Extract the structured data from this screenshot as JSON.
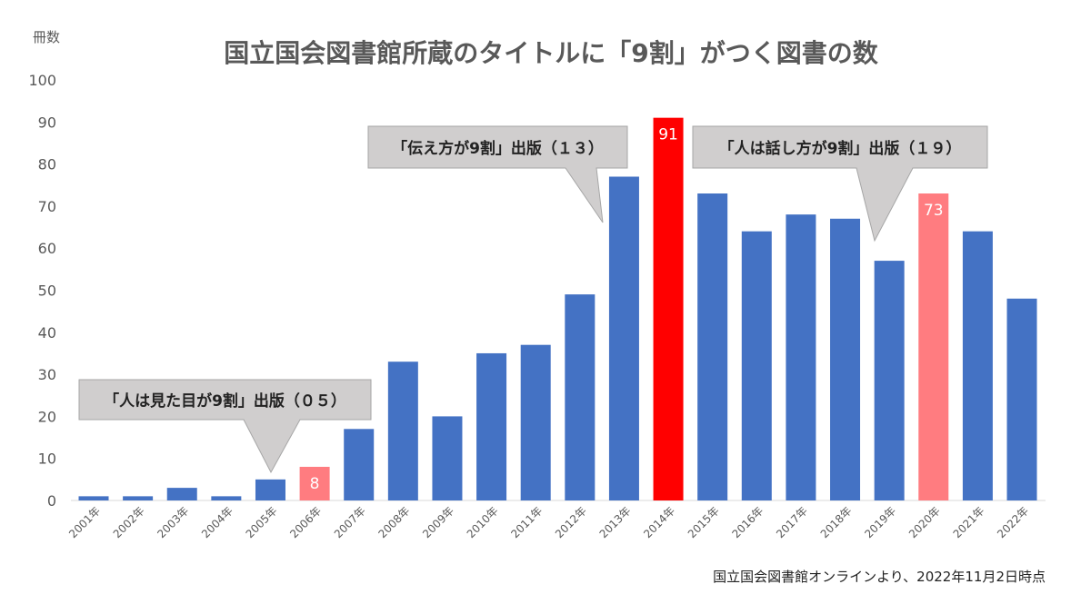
{
  "chart_data": {
    "type": "bar",
    "title": "国立国会図書館所蔵のタイトルに「9割」がつく図書の数",
    "ylabel": "冊数",
    "xlabel": "",
    "ylim": [
      0,
      100
    ],
    "yticks": [
      0,
      10,
      20,
      30,
      40,
      50,
      60,
      70,
      80,
      90,
      100
    ],
    "grid": false,
    "categories": [
      "2001年",
      "2002年",
      "2003年",
      "2004年",
      "2005年",
      "2006年",
      "2007年",
      "2008年",
      "2009年",
      "2010年",
      "2011年",
      "2012年",
      "2013年",
      "2014年",
      "2015年",
      "2016年",
      "2017年",
      "2018年",
      "2019年",
      "2020年",
      "2021年",
      "2022年"
    ],
    "values": [
      1,
      1,
      3,
      1,
      5,
      8,
      17,
      33,
      20,
      35,
      37,
      49,
      77,
      91,
      73,
      64,
      68,
      67,
      57,
      73,
      64,
      48
    ],
    "data_labels": {
      "2006年": "8",
      "2014年": "91",
      "2020年": "73"
    },
    "highlight_colors": {
      "2006年": "#ff7c80",
      "2014年": "#ff0000",
      "2020年": "#ff7c80"
    },
    "bar_color": "#4472c4",
    "annotations": [
      {
        "text": "「人は見た目が9割」出版（０５）",
        "target": "2005年"
      },
      {
        "text": "「伝え方が9割」出版（１３）",
        "target": "2013年"
      },
      {
        "text": "「人は話し方が9割」出版（１９）",
        "target": "2019年"
      }
    ],
    "source": "国立国会図書館オンラインより、2022年11月2日時点"
  }
}
